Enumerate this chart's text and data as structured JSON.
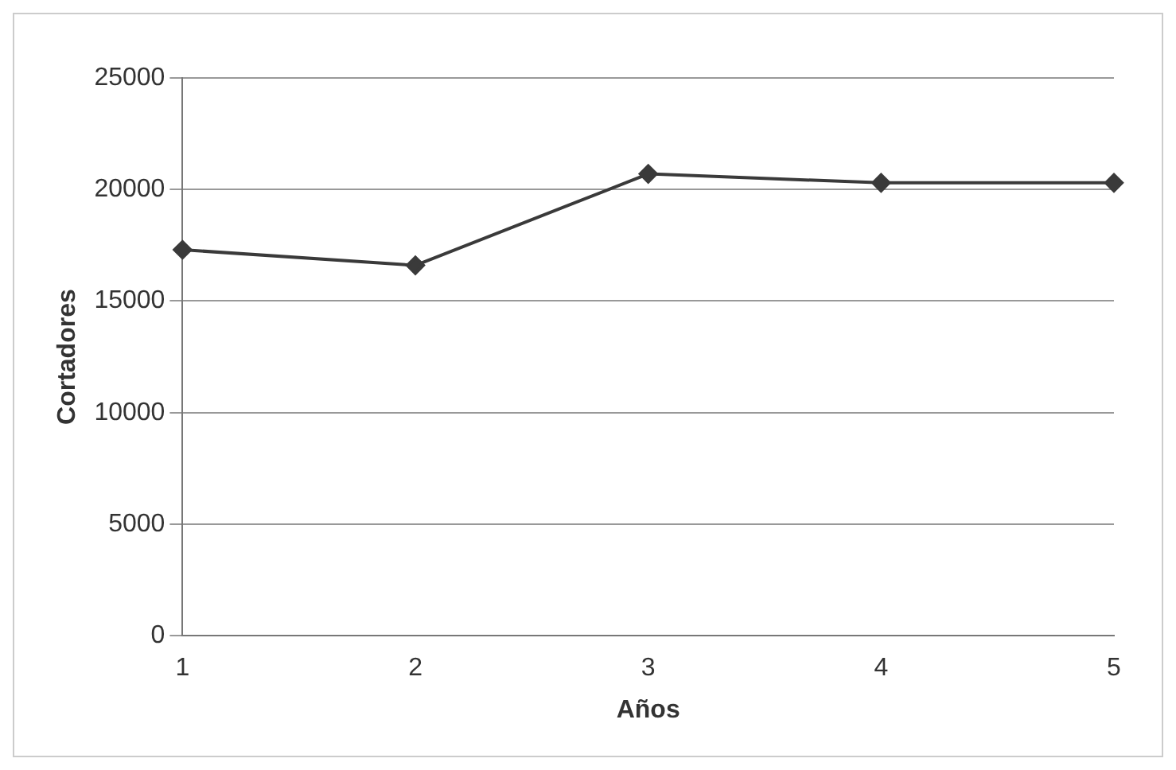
{
  "chart_data": {
    "type": "line",
    "xlabel": "Años",
    "ylabel": "Cortadores",
    "categories": [
      "1",
      "2",
      "3",
      "4",
      "5"
    ],
    "series": [
      {
        "color": "#3a3a3a",
        "values": [
          17300,
          16600,
          20700,
          20300,
          20300
        ]
      }
    ],
    "ylim": [
      0,
      25000
    ],
    "yticks": [
      0,
      5000,
      10000,
      15000,
      20000,
      25000
    ],
    "grid": "y",
    "legend": false,
    "marker": "diamond",
    "line_style": "solid"
  }
}
